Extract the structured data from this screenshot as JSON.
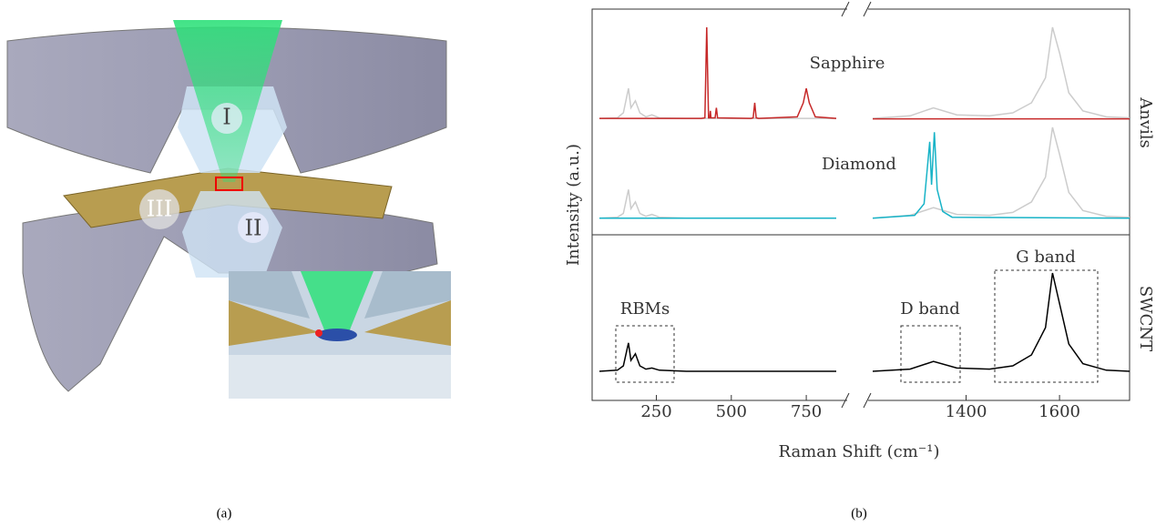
{
  "panel_a": {
    "labels": [
      "I",
      "II",
      "III"
    ],
    "caption": "(a)"
  },
  "chart_data": {
    "type": "line",
    "xlabel": "Raman Shift (cm⁻¹)",
    "ylabel": "Intensity (a.u.)",
    "caption": "(b)",
    "groups": [
      "Anvils",
      "SWCNT"
    ],
    "annotations": [
      "RBMs",
      "D band",
      "G band"
    ],
    "segments": [
      {
        "xlim": [
          60,
          850
        ],
        "xticks": [
          250,
          500,
          750
        ]
      },
      {
        "xlim": [
          1200,
          1750
        ],
        "xticks": [
          1400,
          1600
        ]
      }
    ],
    "rows": [
      {
        "label": "Sapphire",
        "ylim": [
          0,
          1
        ],
        "series": [
          {
            "color": "#cccccc",
            "segments": [
              {
                "x": [
                  60,
                  120,
                  140,
                  157,
                  165,
                  180,
                  195,
                  215,
                  235,
                  260,
                  350,
                  850
                ],
                "values": [
                  0.045,
                  0.05,
                  0.1,
                  0.345,
                  0.15,
                  0.22,
                  0.1,
                  0.06,
                  0.08,
                  0.05,
                  0.045,
                  0.045
                ]
              },
              {
                "x": [
                  1200,
                  1280,
                  1330,
                  1380,
                  1450,
                  1500,
                  1540,
                  1570,
                  1585,
                  1600,
                  1620,
                  1650,
                  1700,
                  1750
                ],
                "values": [
                  0.045,
                  0.07,
                  0.15,
                  0.08,
                  0.07,
                  0.1,
                  0.2,
                  0.45,
                  0.955,
                  0.7,
                  0.3,
                  0.12,
                  0.06,
                  0.05
                ]
              }
            ]
          },
          {
            "color": "#c62828",
            "segments": [
              {
                "x": [
                  60,
                  400,
                  412,
                  418,
                  424,
                  428,
                  430,
                  432,
                  446,
                  450,
                  454,
                  565,
                  573,
                  578,
                  583,
                  591,
                  720,
                  740,
                  750,
                  760,
                  780,
                  850
                ],
                "values": [
                  0.045,
                  0.045,
                  0.05,
                  0.955,
                  0.05,
                  0.05,
                  0.12,
                  0.05,
                  0.05,
                  0.15,
                  0.05,
                  0.045,
                  0.05,
                  0.2,
                  0.05,
                  0.045,
                  0.06,
                  0.2,
                  0.345,
                  0.2,
                  0.06,
                  0.045
                ]
              },
              {
                "x": [
                  1200,
                  1750
                ],
                "values": [
                  0.04,
                  0.04
                ]
              }
            ]
          }
        ]
      },
      {
        "label": "Diamond",
        "ylim": [
          0,
          1
        ],
        "series": [
          {
            "color": "#cccccc",
            "segments": [
              {
                "x": [
                  60,
                  120,
                  140,
                  157,
                  165,
                  180,
                  195,
                  215,
                  235,
                  260,
                  350,
                  850
                ],
                "values": [
                  0.05,
                  0.06,
                  0.1,
                  0.35,
                  0.15,
                  0.22,
                  0.1,
                  0.07,
                  0.09,
                  0.06,
                  0.05,
                  0.05
                ]
              },
              {
                "x": [
                  1200,
                  1280,
                  1330,
                  1380,
                  1450,
                  1500,
                  1540,
                  1570,
                  1585,
                  1600,
                  1620,
                  1650,
                  1700,
                  1750
                ],
                "values": [
                  0.05,
                  0.08,
                  0.16,
                  0.09,
                  0.08,
                  0.11,
                  0.22,
                  0.48,
                  1.0,
                  0.72,
                  0.32,
                  0.13,
                  0.07,
                  0.06
                ]
              }
            ]
          },
          {
            "color": "#17b3c7",
            "segments": [
              {
                "x": [
                  60,
                  850
                ],
                "values": [
                  0.05,
                  0.05
                ]
              },
              {
                "x": [
                  1200,
                  1290,
                  1310,
                  1322,
                  1326,
                  1332,
                  1338,
                  1350,
                  1370,
                  1750
                ],
                "values": [
                  0.05,
                  0.08,
                  0.2,
                  0.85,
                  0.4,
                  0.95,
                  0.35,
                  0.12,
                  0.06,
                  0.05
                ]
              }
            ]
          }
        ]
      },
      {
        "ylim": [
          0,
          1
        ],
        "series": [
          {
            "color": "#000000",
            "segments": [
              {
                "x": [
                  60,
                  120,
                  140,
                  157,
                  165,
                  180,
                  195,
                  215,
                  235,
                  260,
                  350,
                  850
                ],
                "values": [
                  0.1,
                  0.11,
                  0.15,
                  0.36,
                  0.2,
                  0.26,
                  0.15,
                  0.12,
                  0.13,
                  0.11,
                  0.1,
                  0.1
                ]
              },
              {
                "x": [
                  1200,
                  1280,
                  1330,
                  1380,
                  1450,
                  1500,
                  1540,
                  1570,
                  1585,
                  1600,
                  1620,
                  1650,
                  1700,
                  1750
                ],
                "values": [
                  0.1,
                  0.12,
                  0.19,
                  0.13,
                  0.12,
                  0.15,
                  0.25,
                  0.5,
                  1.0,
                  0.72,
                  0.35,
                  0.17,
                  0.11,
                  0.1
                ]
              }
            ]
          }
        ]
      }
    ]
  }
}
